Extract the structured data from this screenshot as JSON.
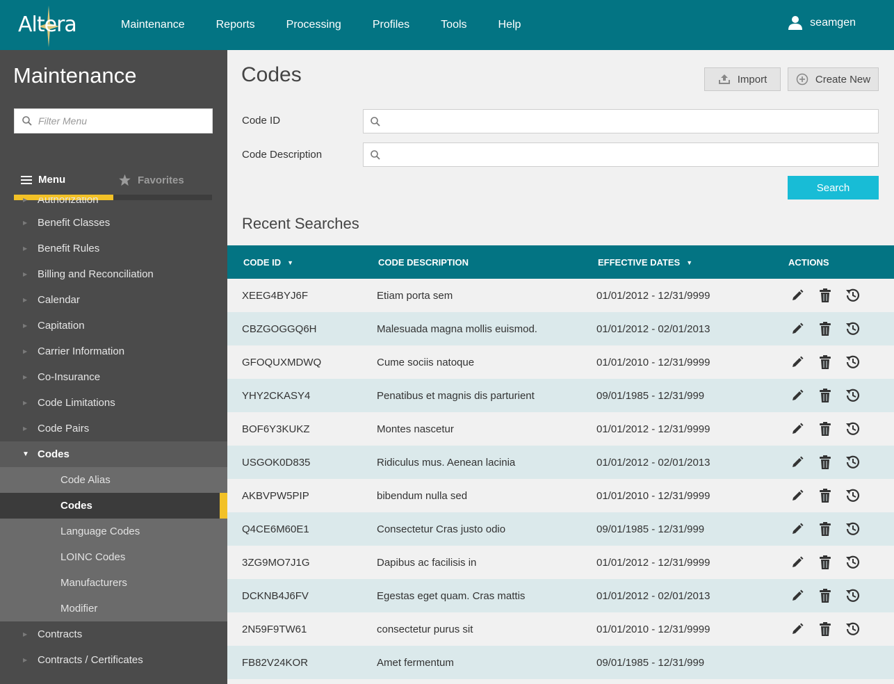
{
  "header": {
    "logo_text": "Altera",
    "nav": [
      "Maintenance",
      "Reports",
      "Processing",
      "Profiles",
      "Tools",
      "Help"
    ],
    "username": "seamgen"
  },
  "sidebar": {
    "title": "Maintenance",
    "filter_placeholder": "Filter Menu",
    "tab_menu": "Menu",
    "tab_favorites": "Favorites",
    "items_top": [
      "Authorization",
      "Benefit Classes",
      "Benefit Rules",
      "Billing and Reconciliation",
      "Calendar",
      "Capitation",
      "Carrier Information",
      "Co-Insurance",
      "Code Limitations",
      "Code Pairs"
    ],
    "open_item": "Codes",
    "sub_items": [
      "Code Alias",
      "Codes",
      "Language Codes",
      "LOINC Codes",
      "Manufacturers",
      "Modifier"
    ],
    "items_bottom": [
      "Contracts",
      "Contracts / Certificates"
    ]
  },
  "main": {
    "title": "Codes",
    "import_label": "Import",
    "create_label": "Create New",
    "code_id_label": "Code ID",
    "code_desc_label": "Code Description",
    "search_label": "Search",
    "recent_title": "Recent Searches"
  },
  "table": {
    "headers": [
      "CODE ID",
      "CODE DESCRIPTION",
      "EFFECTIVE DATES",
      "ACTIONS"
    ],
    "rows": [
      [
        "XEEG4BYJ6F",
        "Etiam porta sem",
        "01/01/2012 - 12/31/9999"
      ],
      [
        "CBZGOGGQ6H",
        "Malesuada magna mollis euismod.",
        "01/01/2012 - 02/01/2013"
      ],
      [
        "GFOQUXMDWQ",
        "Cume sociis natoque",
        "01/01/2010 - 12/31/9999"
      ],
      [
        "YHY2CKASY4",
        "Penatibus et magnis dis parturient",
        "09/01/1985 - 12/31/999"
      ],
      [
        "BOF6Y3KUKZ",
        "Montes nascetur",
        "01/01/2012 - 12/31/9999"
      ],
      [
        "USGOK0D835",
        "Ridiculus mus. Aenean lacinia",
        "01/01/2012 - 02/01/2013"
      ],
      [
        "AKBVPW5PIP",
        "bibendum nulla sed",
        "01/01/2010 - 12/31/9999"
      ],
      [
        "Q4CE6M60E1",
        "Consectetur Cras justo odio",
        "09/01/1985 - 12/31/999"
      ],
      [
        "3ZG9MO7J1G",
        "Dapibus ac facilisis in",
        "01/01/2012 - 12/31/9999"
      ],
      [
        "DCKNB4J6FV",
        "Egestas eget quam. Cras mattis",
        "01/01/2012 - 02/01/2013"
      ],
      [
        "2N59F9TW61",
        "consectetur purus sit",
        "01/01/2010 - 12/31/9999"
      ],
      [
        "FB82V24KOR",
        "Amet fermentum",
        "09/01/1985 - 12/31/999"
      ]
    ]
  }
}
